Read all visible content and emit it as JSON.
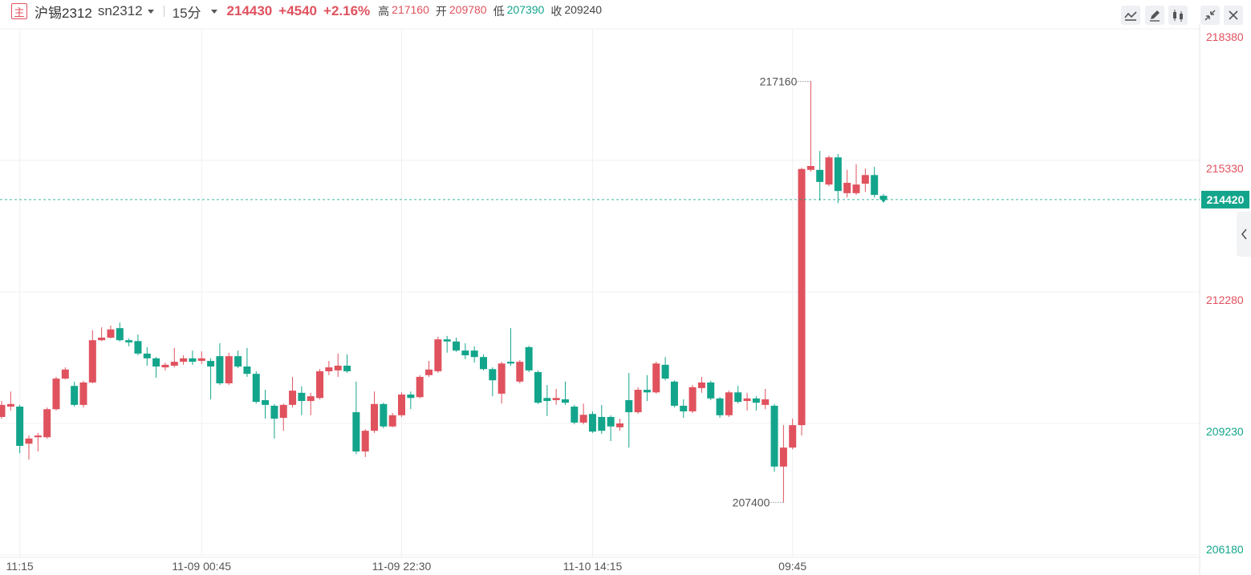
{
  "header": {
    "badge": "主",
    "symbol": "沪锡2312",
    "code": "sn2312",
    "period": "15分",
    "price": "214430",
    "change": "+4540",
    "change_pct": "+2.16%",
    "stats": [
      {
        "label": "高",
        "value": 217160
      },
      {
        "label": "开",
        "value": 209780
      },
      {
        "label": "低",
        "value": 207390
      },
      {
        "label": "收",
        "value": 209240
      }
    ]
  },
  "chart_data": {
    "type": "candlestick",
    "categories": [
      null,
      null,
      "11:15",
      null,
      null,
      null,
      null,
      null,
      null,
      null,
      null,
      null,
      null,
      null,
      null,
      null,
      null,
      null,
      null,
      null,
      null,
      null,
      "11-09 00:45",
      null,
      null,
      null,
      null,
      null,
      null,
      null,
      null,
      null,
      null,
      null,
      null,
      null,
      null,
      null,
      null,
      null,
      null,
      null,
      null,
      null,
      "11-09 22:30",
      null,
      null,
      null,
      null,
      null,
      null,
      null,
      null,
      null,
      null,
      null,
      null,
      null,
      null,
      null,
      null,
      null,
      null,
      null,
      null,
      "11-10 14:15",
      null,
      null,
      null,
      null,
      null,
      null,
      null,
      null,
      null,
      null,
      null,
      null,
      null,
      null,
      null,
      null,
      null,
      null,
      null,
      null,
      null,
      "09:45",
      null,
      null,
      null,
      null,
      null,
      null,
      null,
      null,
      null,
      null
    ],
    "open": [
      209380,
      209620,
      209620,
      208760,
      208910,
      208910,
      209560,
      210270,
      210100,
      209660,
      210180,
      211160,
      211220,
      211440,
      211160,
      211140,
      210850,
      210740,
      210530,
      210570,
      210660,
      210740,
      210680,
      210680,
      210790,
      210160,
      210790,
      210550,
      210380,
      209770,
      209640,
      209360,
      209660,
      209940,
      209750,
      209820,
      210440,
      210460,
      210570,
      209490,
      208580,
      209060,
      209680,
      209160,
      209420,
      209900,
      209840,
      210350,
      210440,
      211180,
      211130,
      210920,
      210920,
      210770,
      210490,
      209920,
      210660,
      210200,
      211000,
      210420,
      209820,
      209770,
      209790,
      209620,
      209250,
      209450,
      209380,
      209380,
      209140,
      209770,
      209490,
      210010,
      209950,
      210590,
      210200,
      209640,
      209510,
      210050,
      210180,
      209810,
      209420,
      209950,
      209750,
      209810,
      209660,
      209640,
      208230,
      208670,
      209190,
      215110,
      215110,
      214770,
      215400,
      214570,
      214570,
      214790,
      214990,
      214510
    ],
    "high": [
      209750,
      209970,
      209660,
      208950,
      209010,
      209600,
      210310,
      210530,
      210200,
      210220,
      211390,
      211460,
      211500,
      211570,
      211200,
      211290,
      211000,
      210770,
      210640,
      210980,
      210810,
      210920,
      210900,
      210740,
      211090,
      210870,
      210920,
      210980,
      210440,
      210010,
      209680,
      209690,
      210310,
      210090,
      209940,
      210490,
      210680,
      210850,
      210830,
      210200,
      209100,
      209970,
      209710,
      209470,
      209950,
      209970,
      210350,
      210680,
      211240,
      211260,
      211220,
      211090,
      211020,
      210830,
      210530,
      210660,
      211440,
      210700,
      211030,
      210460,
      210120,
      210030,
      210200,
      209660,
      209690,
      209510,
      209660,
      209420,
      209340,
      210400,
      210070,
      210350,
      210660,
      210770,
      210230,
      209790,
      210120,
      210310,
      210220,
      209840,
      209990,
      210100,
      209940,
      209860,
      210030,
      209680,
      209190,
      209340,
      215160,
      217160,
      215550,
      215440,
      215480,
      215110,
      215240,
      215140,
      215180,
      214550
    ],
    "low": [
      209340,
      209530,
      208540,
      208390,
      208580,
      208880,
      209530,
      210250,
      209620,
      209600,
      210160,
      211140,
      211200,
      211130,
      211020,
      210810,
      210570,
      210290,
      210460,
      210530,
      210590,
      210590,
      210610,
      209790,
      210120,
      210120,
      210510,
      210310,
      209690,
      209340,
      208880,
      209060,
      209600,
      209420,
      209420,
      209790,
      210350,
      210310,
      210400,
      208520,
      208450,
      209010,
      209120,
      209140,
      209380,
      209560,
      209810,
      210310,
      210400,
      210870,
      210890,
      210720,
      210640,
      210460,
      209860,
      209690,
      210570,
      210160,
      210420,
      209680,
      209400,
      209660,
      209660,
      209210,
      209210,
      209010,
      208990,
      208820,
      209060,
      208670,
      209450,
      209750,
      209920,
      210230,
      209600,
      209360,
      209470,
      209940,
      209770,
      209360,
      209380,
      209690,
      209530,
      209530,
      209560,
      208110,
      207400,
      208630,
      208950,
      215070,
      214400,
      214730,
      214340,
      214470,
      214530,
      214600,
      214470,
      214400
    ],
    "close": [
      209660,
      209680,
      208710,
      208880,
      208950,
      209560,
      210270,
      210480,
      209660,
      210180,
      211160,
      211220,
      211410,
      211160,
      211110,
      210850,
      210740,
      210550,
      210590,
      210660,
      210740,
      210660,
      210740,
      210550,
      210160,
      210790,
      210550,
      210380,
      209730,
      209660,
      209340,
      209660,
      209990,
      209750,
      209860,
      210440,
      210530,
      210570,
      210440,
      208580,
      209060,
      209680,
      209160,
      209420,
      209900,
      209820,
      210310,
      210480,
      211180,
      211130,
      210920,
      210810,
      210770,
      210490,
      210230,
      210620,
      210620,
      210660,
      210460,
      209710,
      209750,
      209820,
      209710,
      209250,
      209430,
      209040,
      209060,
      209160,
      209230,
      209490,
      210010,
      209950,
      210620,
      210270,
      209640,
      209510,
      210070,
      210180,
      209810,
      209420,
      209950,
      209730,
      209810,
      209710,
      209790,
      208230,
      208670,
      209190,
      215130,
      215200,
      214830,
      215400,
      214620,
      214810,
      214770,
      214990,
      214530,
      214420
    ],
    "up_color": "#e0525e",
    "down_color": "#13a58b",
    "ylim": [
      206180,
      218380
    ],
    "yticks": [
      206180,
      209230,
      212280,
      215330,
      218380
    ],
    "grid": true
  }
}
